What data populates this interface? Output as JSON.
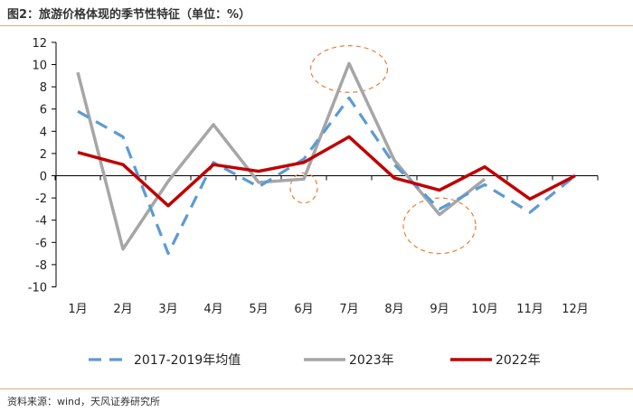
{
  "figure": {
    "title": "图2：旅游价格体现的季节性特征（单位：%）",
    "source": "资料来源：wind，天风证券研究所"
  },
  "chart_data": {
    "type": "line",
    "categories": [
      "1月",
      "2月",
      "3月",
      "4月",
      "5月",
      "6月",
      "7月",
      "8月",
      "9月",
      "10月",
      "11月",
      "12月"
    ],
    "ylim": [
      -10,
      12
    ],
    "yticks": [
      -10,
      -8,
      -6,
      -4,
      -2,
      0,
      2,
      4,
      6,
      8,
      10,
      12
    ],
    "grid": false,
    "legend_position": "bottom",
    "series": [
      {
        "name": "2017-2019年均值",
        "color": "#5b9bd5",
        "style": "dashed",
        "values": [
          5.8,
          3.5,
          -7.0,
          1.2,
          -1.0,
          1.5,
          7.0,
          1.0,
          -3.0,
          -0.8,
          -3.3,
          0.0
        ]
      },
      {
        "name": "2023年",
        "color": "#a6a6a6",
        "style": "solid",
        "values": [
          9.3,
          -6.6,
          -0.5,
          4.6,
          -0.6,
          -0.3,
          10.1,
          1.4,
          -3.5,
          -0.3,
          null,
          null
        ]
      },
      {
        "name": "2022年",
        "color": "#c00000",
        "style": "solid",
        "values": [
          2.1,
          1.0,
          -2.7,
          1.0,
          0.4,
          1.2,
          3.5,
          -0.2,
          -1.3,
          0.8,
          -2.1,
          0.0
        ]
      }
    ],
    "annotations": [
      {
        "shape": "dashed-ellipse",
        "color": "#ed7d31",
        "center_month": "7月",
        "center_value": 9.6,
        "rx_months": 0.85,
        "ry_value": 2.1
      },
      {
        "shape": "dashed-ellipse",
        "color": "#ed7d31",
        "center_month": "6月",
        "center_value": -1.1,
        "rx_months": 0.3,
        "ry_value": 1.35
      },
      {
        "shape": "dashed-ellipse",
        "color": "#ed7d31",
        "center_month": "9月",
        "center_value": -4.5,
        "rx_months": 0.8,
        "ry_value": 2.5
      }
    ]
  }
}
